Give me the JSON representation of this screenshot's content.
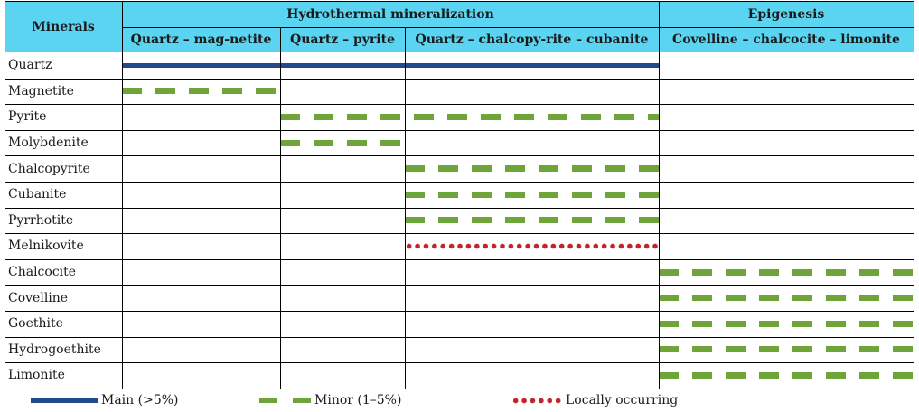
{
  "table": {
    "header": {
      "minerals": "Minerals",
      "hydrothermal": "Hydrothermal mineralization",
      "epigenesis": "Epigenesis",
      "stages": [
        "Quartz – mag-netite",
        "Quartz – pyrite",
        "Quartz – chalcopy-rite – cubanite",
        "Covelline – chalcocite – limonite"
      ]
    },
    "rows": [
      {
        "mineral": "Quartz",
        "occurrence": "main",
        "stage_span": [
          0,
          3
        ]
      },
      {
        "mineral": "Magnetite",
        "occurrence": "minor",
        "stage_span": [
          0,
          1
        ]
      },
      {
        "mineral": "Pyrite",
        "occurrence": "minor",
        "stage_span": [
          1,
          3
        ]
      },
      {
        "mineral": "Molybdenite",
        "occurrence": "minor",
        "stage_span": [
          1,
          2
        ]
      },
      {
        "mineral": "Chalcopyrite",
        "occurrence": "minor",
        "stage_span": [
          2,
          3
        ]
      },
      {
        "mineral": "Cubanite",
        "occurrence": "minor",
        "stage_span": [
          2,
          3
        ]
      },
      {
        "mineral": "Pyrrhotite",
        "occurrence": "minor",
        "stage_span": [
          2,
          3
        ]
      },
      {
        "mineral": "Melnikovite",
        "occurrence": "local",
        "stage_span": [
          2,
          3
        ]
      },
      {
        "mineral": "Chalcocite",
        "occurrence": "minor",
        "stage_span": [
          3,
          4
        ]
      },
      {
        "mineral": "Covelline",
        "occurrence": "minor",
        "stage_span": [
          3,
          4
        ]
      },
      {
        "mineral": "Goethite",
        "occurrence": "minor",
        "stage_span": [
          3,
          4
        ]
      },
      {
        "mineral": "Hydrogoethite",
        "occurrence": "minor",
        "stage_span": [
          3,
          4
        ]
      },
      {
        "mineral": "Limonite",
        "occurrence": "minor",
        "stage_span": [
          3,
          4
        ]
      }
    ]
  },
  "legend": {
    "main": "Main (>5%)",
    "minor": "Minor (1–5%)",
    "local": "Locally occurring"
  },
  "colors": {
    "header_bg": "#5bd4f2",
    "main": "#234b8c",
    "minor": "#6ea43a",
    "local": "#c2242c"
  }
}
